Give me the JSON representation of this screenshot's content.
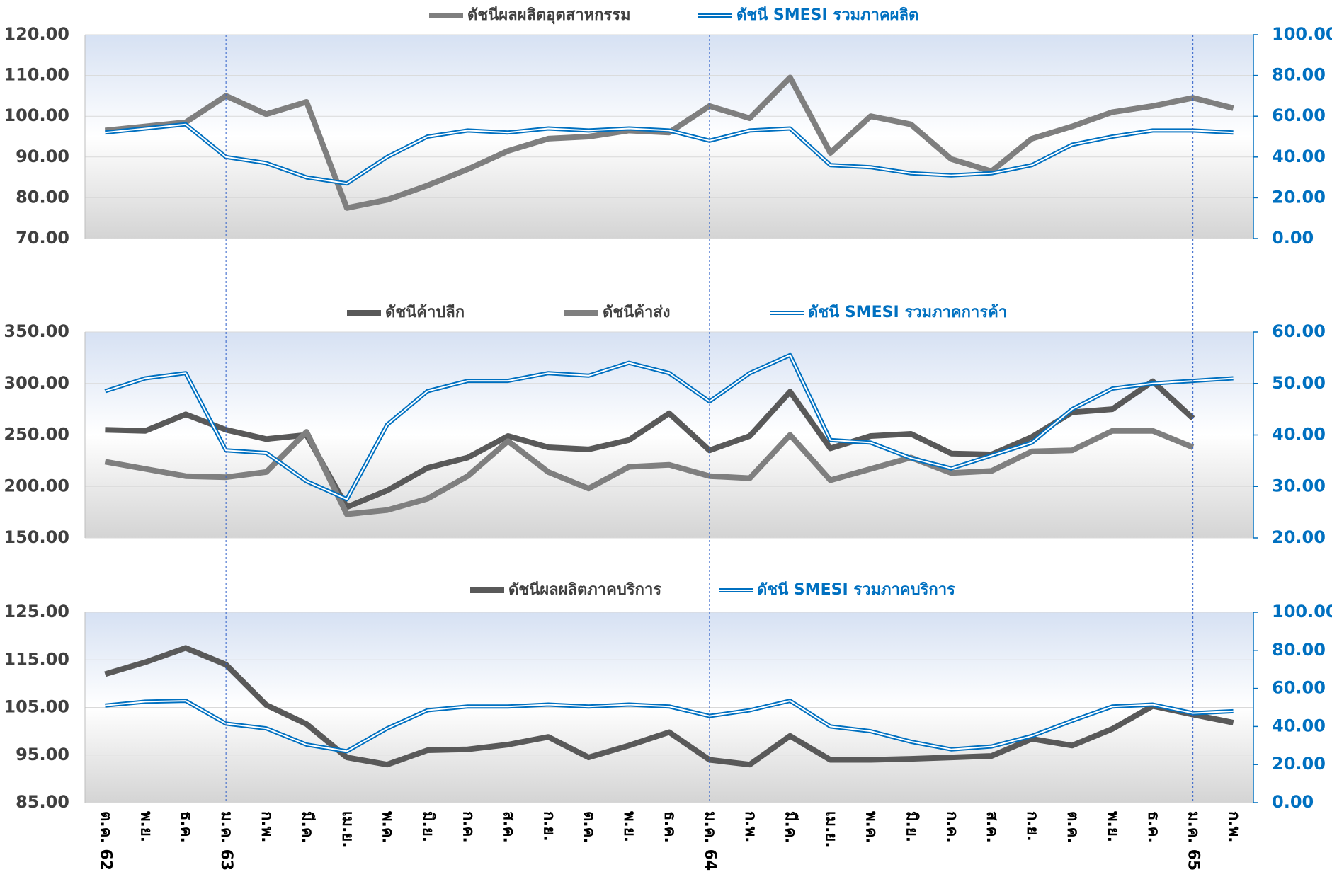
{
  "chart_data": [
    {
      "type": "line",
      "series": [
        {
          "name": "ดัชนีผลผลิตอุตสาหกรรม",
          "color": "#7f7f7f",
          "axis": "y",
          "style": "solid",
          "values": [
            96.5,
            97.5,
            98.5,
            105,
            100.5,
            103.5,
            77.5,
            79.5,
            83,
            87,
            91.5,
            94.5,
            95,
            96.5,
            96,
            102.5,
            99.5,
            109.5,
            91,
            100,
            98,
            89.5,
            86.5,
            94.5,
            97.5,
            101,
            102.5,
            104.5,
            102
          ]
        },
        {
          "name": "ดัชนี SMESI รวมภาคผลิต",
          "color": "#0070c0",
          "axis": "y2",
          "style": "double",
          "values": [
            52,
            54,
            56,
            40,
            37,
            30,
            27,
            40,
            50,
            53,
            52,
            54,
            53,
            54,
            53,
            48,
            53,
            54,
            36,
            35,
            32,
            31,
            32,
            36,
            46,
            50,
            53,
            53,
            52
          ]
        }
      ],
      "ylim": [
        70,
        120
      ],
      "yticks": [
        {
          "value": 70,
          "label": "70.00"
        },
        {
          "value": 80,
          "label": "80.00"
        },
        {
          "value": 90,
          "label": "90.00"
        },
        {
          "value": 100,
          "label": "100.00"
        },
        {
          "value": 110,
          "label": "110.00"
        },
        {
          "value": 120,
          "label": "120.00"
        }
      ],
      "y2lim": [
        0,
        100
      ],
      "y2ticks": [
        {
          "value": 0,
          "label": "0.00"
        },
        {
          "value": 20,
          "label": "20.00"
        },
        {
          "value": 40,
          "label": "40.00"
        },
        {
          "value": 60,
          "label": "60.00"
        },
        {
          "value": 80,
          "label": "80.00"
        },
        {
          "value": 100,
          "label": "100.00"
        }
      ]
    },
    {
      "type": "line",
      "series": [
        {
          "name": "ดัชนีค้าปลีก",
          "color": "#595959",
          "axis": "y",
          "style": "solid",
          "values": [
            255,
            254,
            270,
            255,
            246,
            250,
            180,
            196,
            218,
            228,
            249,
            238,
            236,
            245,
            271,
            235,
            249,
            292,
            237,
            249,
            251,
            232,
            231,
            248,
            272,
            275,
            302,
            266,
            null
          ]
        },
        {
          "name": "ดัชนีค้าส่ง",
          "color": "#7f7f7f",
          "axis": "y",
          "style": "solid",
          "values": [
            224,
            217,
            210,
            209,
            214,
            253,
            173,
            177,
            188,
            210,
            244,
            214,
            198,
            219,
            221,
            210,
            208,
            250,
            206,
            217,
            228,
            213,
            215,
            234,
            235,
            254,
            254,
            238,
            null
          ]
        },
        {
          "name": "ดัชนี SMESI รวมภาคการค้า",
          "color": "#0070c0",
          "axis": "y2",
          "style": "double",
          "values": [
            48.5,
            51,
            52,
            37,
            36.5,
            31,
            27.5,
            42,
            48.5,
            50.5,
            50.5,
            52,
            51.5,
            54,
            52,
            46.5,
            52,
            55.5,
            39,
            38.5,
            35.5,
            33.5,
            36,
            38.5,
            45,
            49,
            50,
            50.5,
            51
          ]
        }
      ],
      "ylim": [
        150,
        350
      ],
      "yticks": [
        {
          "value": 150,
          "label": "150.00"
        },
        {
          "value": 200,
          "label": "200.00"
        },
        {
          "value": 250,
          "label": "250.00"
        },
        {
          "value": 300,
          "label": "300.00"
        },
        {
          "value": 350,
          "label": "350.00"
        }
      ],
      "y2lim": [
        20,
        60
      ],
      "y2ticks": [
        {
          "value": 20,
          "label": "20.00"
        },
        {
          "value": 30,
          "label": "30.00"
        },
        {
          "value": 40,
          "label": "40.00"
        },
        {
          "value": 50,
          "label": "50.00"
        },
        {
          "value": 60,
          "label": "60.00"
        }
      ]
    },
    {
      "type": "line",
      "categories": [
        "ต.ค. 62",
        "พ.ย.",
        "ธ.ค.",
        "ม.ค. 63",
        "ก.พ.",
        "มี.ค.",
        "เม.ย.",
        "พ.ค.",
        "มิ.ย.",
        "ก.ค.",
        "ส.ค.",
        "ก.ย.",
        "ต.ค.",
        "พ.ย.",
        "ธ.ค.",
        "ม.ค. 64",
        "ก.พ.",
        "มี.ค.",
        "เม.ย.",
        "พ.ค.",
        "มิ.ย.",
        "ก.ค.",
        "ส.ค.",
        "ก.ย.",
        "ต.ค.",
        "พ.ย.",
        "ธ.ค.",
        "ม.ค. 65",
        "ก.พ."
      ],
      "series": [
        {
          "name": "ดัชนีผลผลิตภาคบริการ",
          "color": "#595959",
          "axis": "y",
          "style": "solid",
          "values": [
            112,
            114.5,
            117.5,
            114,
            105.5,
            101.5,
            94.5,
            93,
            96,
            96.2,
            97.2,
            98.8,
            94.5,
            97,
            99.8,
            94,
            93,
            99,
            94,
            94,
            94.2,
            94.5,
            94.8,
            98.4,
            97,
            100.5,
            105.3,
            103.5,
            101.8
          ]
        },
        {
          "name": "ดัชนี SMESI รวมภาคบริการ",
          "color": "#0070c0",
          "axis": "y2",
          "style": "double",
          "values": [
            51,
            53,
            53.5,
            41.5,
            39,
            30.5,
            27,
            39,
            48.5,
            50.5,
            50.5,
            51.5,
            50.5,
            51.5,
            50.5,
            45.5,
            48.5,
            53.5,
            40,
            37.5,
            32,
            28,
            29.5,
            35,
            43,
            50.5,
            51.5,
            47,
            48
          ]
        }
      ],
      "ylim": [
        85,
        125
      ],
      "yticks": [
        {
          "value": 85,
          "label": "85.00"
        },
        {
          "value": 95,
          "label": "95.00"
        },
        {
          "value": 105,
          "label": "105.00"
        },
        {
          "value": 115,
          "label": "115.00"
        },
        {
          "value": 125,
          "label": "125.00"
        }
      ],
      "y2lim": [
        0,
        100
      ],
      "y2ticks": [
        {
          "value": 0,
          "label": "0.00"
        },
        {
          "value": 20,
          "label": "20.00"
        },
        {
          "value": 40,
          "label": "40.00"
        },
        {
          "value": 60,
          "label": "60.00"
        },
        {
          "value": 80,
          "label": "80.00"
        },
        {
          "value": 100,
          "label": "100.00"
        }
      ]
    }
  ]
}
